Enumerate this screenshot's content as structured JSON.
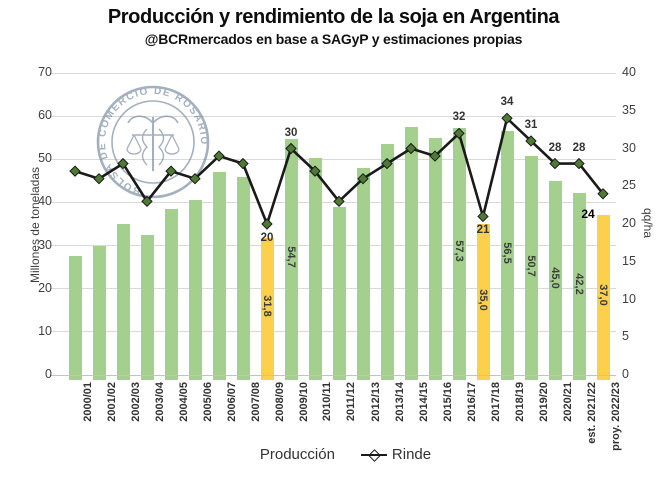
{
  "title": "Producción y rendimiento de la soja en Argentina",
  "subtitle": "@BCRmercados en base a SAGyP y estimaciones propias",
  "watermark": {
    "text": "BOLSA DE COMERCIO DE ROSARIO",
    "icon": "caduceus-scales-icon",
    "color": "#74869a"
  },
  "legend": {
    "items": [
      {
        "label": "Producción",
        "swatch": "green-bar"
      },
      {
        "label": "Rinde",
        "swatch": "black-line-diamond"
      }
    ]
  },
  "chart_data": {
    "type": "bar",
    "title": "Producción y rendimiento de la soja en Argentina",
    "subtitle": "@BCRmercados en base a SAGyP y estimaciones propias",
    "categories": [
      "2000/01",
      "2001/02",
      "2002/03",
      "2003/04",
      "2004/05",
      "2005/06",
      "2006/07",
      "2007/08",
      "2008/09",
      "2009/10",
      "2010/11",
      "2011/12",
      "2012/13",
      "2013/14",
      "2014/15",
      "2015/16",
      "2016/17",
      "2017/18",
      "2018/19",
      "2019/20",
      "2020/21",
      "est. 2021/22",
      "proy. 2022/23"
    ],
    "series": [
      {
        "name": "Producción",
        "type": "bar",
        "axis": "left",
        "values": [
          27.5,
          30.0,
          35.0,
          32.5,
          38.5,
          40.5,
          47.0,
          46.0,
          31.8,
          54.7,
          50.4,
          39.0,
          48.0,
          53.5,
          57.5,
          55.0,
          57.3,
          35.0,
          56.5,
          50.7,
          45.0,
          42.2,
          37.0
        ],
        "data_labels": [
          "",
          "",
          "",
          "",
          "",
          "",
          "",
          "",
          "31,8",
          "54,7",
          "",
          "",
          "",
          "",
          "",
          "",
          "57,3",
          "35,0",
          "56,5",
          "50,7",
          "45,0",
          "42,2",
          "37,0"
        ],
        "highlighted_indices": [
          8,
          17,
          22
        ]
      },
      {
        "name": "Rinde",
        "type": "line",
        "axis": "right",
        "values": [
          27,
          26,
          28,
          23,
          27,
          26,
          29,
          28,
          20,
          30,
          27,
          23,
          26,
          28,
          30,
          29,
          32,
          21,
          34,
          31,
          28,
          28,
          24
        ],
        "data_labels": [
          "",
          "",
          "",
          "",
          "",
          "",
          "",
          "",
          "20",
          "30",
          "",
          "",
          "",
          "",
          "",
          "",
          "32",
          "21",
          "34",
          "31",
          "28",
          "28",
          "24"
        ],
        "labels_below_indices": [
          8,
          17,
          22
        ],
        "bold_label_indices": [
          22
        ]
      }
    ],
    "left_axis": {
      "label": "Millones de toneladas",
      "min": 0,
      "max": 70,
      "ticks": [
        0,
        10,
        20,
        30,
        40,
        50,
        60,
        70
      ]
    },
    "right_axis": {
      "label": "qq/ha",
      "min": 0,
      "max": 40,
      "ticks": [
        0,
        5,
        10,
        15,
        20,
        25,
        30,
        35,
        40
      ]
    },
    "grid": true,
    "legend_position": "bottom",
    "colors": {
      "bar_green": "#a5cf8d",
      "bar_highlight_yellow": "#fccf4d",
      "line_black": "#1a1a1a",
      "marker_green": "#4e7a35",
      "gridline_gray": "#d9d9d9",
      "text_gray": "#404040"
    }
  }
}
